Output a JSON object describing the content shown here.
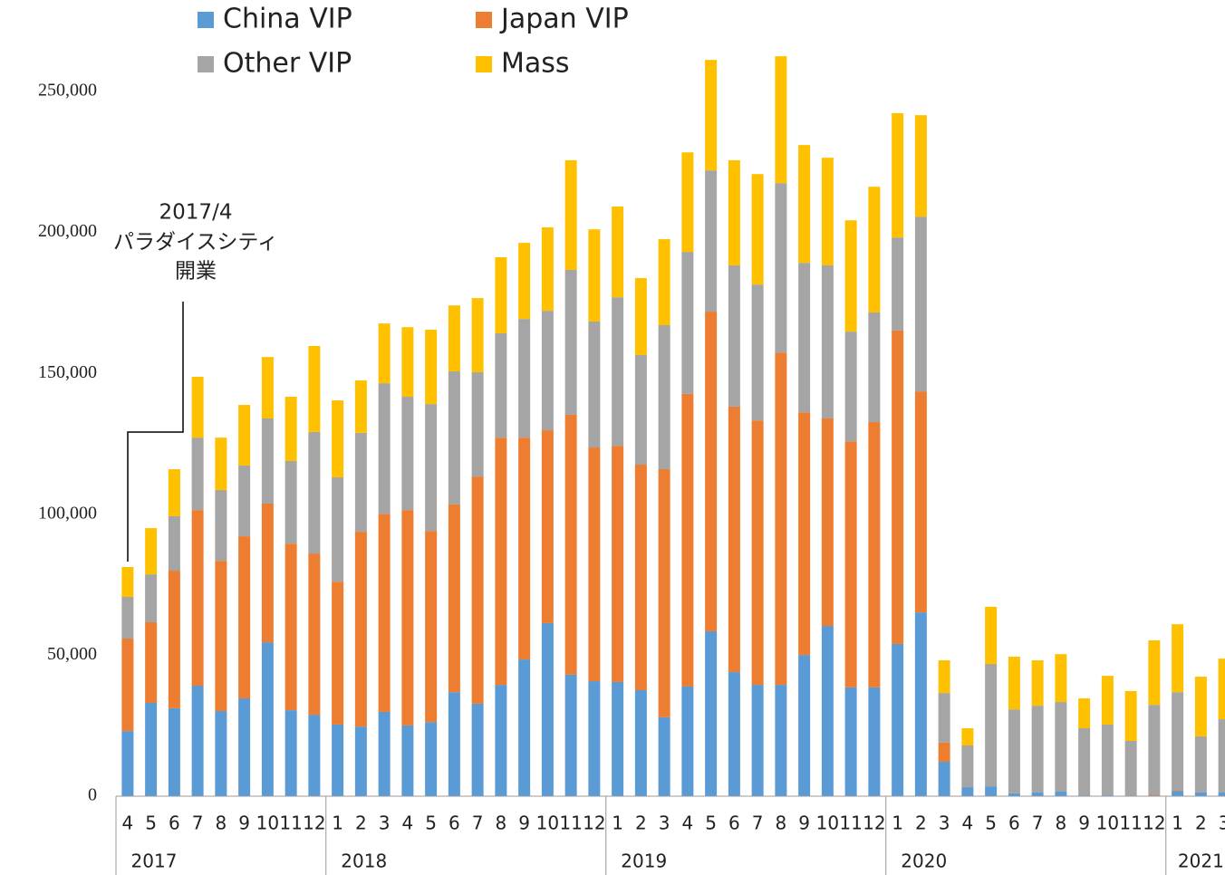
{
  "chart_data": {
    "type": "stacked_bar",
    "annotation": [
      "2017/4",
      "パラダイスシティ",
      "開業"
    ],
    "categories": [
      "4",
      "5",
      "6",
      "7",
      "8",
      "9",
      "10",
      "11",
      "12",
      "1",
      "2",
      "3",
      "4",
      "5",
      "6",
      "7",
      "8",
      "9",
      "10",
      "11",
      "12",
      "1",
      "2",
      "3",
      "4",
      "5",
      "6",
      "7",
      "8",
      "9",
      "10",
      "11",
      "12",
      "1",
      "2",
      "3",
      "4",
      "5",
      "6",
      "7",
      "8",
      "9",
      "10",
      "11",
      "12",
      "1",
      "2",
      "3"
    ],
    "groups": [
      {
        "name": "2017",
        "size": 9
      },
      {
        "name": "2018",
        "size": 12
      },
      {
        "name": "2019",
        "size": 12
      },
      {
        "name": "2020",
        "size": 12
      },
      {
        "name": "2021",
        "size": 3
      }
    ],
    "series": [
      {
        "name": "China VIP",
        "color": "#5b9bd5",
        "values": [
          23100,
          33100,
          31200,
          39200,
          30200,
          34700,
          54600,
          30500,
          28900,
          25400,
          24700,
          29900,
          25100,
          26300,
          36900,
          32800,
          39500,
          48500,
          61400,
          43100,
          40800,
          40500,
          37600,
          28000,
          38900,
          58500,
          44000,
          39500,
          39500,
          50100,
          60400,
          38600,
          38600,
          54000,
          65200,
          12200,
          3200,
          3500,
          1000,
          1300,
          1600,
          300,
          300,
          0,
          300,
          1900,
          1300,
          1300
        ]
      },
      {
        "name": "Japan VIP",
        "color": "#ed7d31",
        "values": [
          32800,
          28600,
          48800,
          62300,
          53300,
          57500,
          49200,
          59100,
          57200,
          50700,
          69100,
          70300,
          76400,
          67800,
          66600,
          80600,
          87700,
          78700,
          68400,
          92200,
          82900,
          83800,
          80000,
          88000,
          103800,
          113400,
          94200,
          93800,
          117900,
          86100,
          73600,
          87300,
          94100,
          111200,
          78400,
          6800,
          0,
          0,
          0,
          0,
          0,
          0,
          0,
          0,
          300,
          300,
          0,
          0
        ]
      },
      {
        "name": "Other VIP",
        "color": "#a5a5a5",
        "values": [
          14800,
          17000,
          19300,
          25700,
          25100,
          25100,
          30200,
          29300,
          43100,
          37000,
          35100,
          46300,
          40200,
          45000,
          47200,
          37000,
          37000,
          42100,
          42400,
          51400,
          44700,
          52700,
          38900,
          51100,
          50400,
          50100,
          50100,
          48200,
          60100,
          53000,
          54300,
          38900,
          38900,
          33000,
          62000,
          17600,
          14800,
          43400,
          29800,
          30800,
          31800,
          23800,
          25100,
          19600,
          31800,
          34700,
          19900,
          26000
        ]
      },
      {
        "name": "Mass",
        "color": "#ffc000",
        "values": [
          10600,
          16400,
          16700,
          21600,
          18600,
          21500,
          21800,
          22800,
          30500,
          27300,
          18600,
          21200,
          24700,
          26400,
          23400,
          26300,
          27000,
          27000,
          29600,
          38900,
          32700,
          32200,
          27300,
          30500,
          35300,
          39200,
          37300,
          39200,
          45000,
          41800,
          38200,
          39500,
          44600,
          44100,
          36000,
          11600,
          6100,
          20300,
          18700,
          16100,
          17000,
          10600,
          17300,
          17700,
          22900,
          24100,
          21200,
          21500
        ]
      }
    ],
    "ylim": [
      0,
      250000
    ],
    "yticks": [
      {
        "value": 0,
        "label": "0"
      },
      {
        "value": 50000,
        "label": "50,000"
      },
      {
        "value": 100000,
        "label": "100,000"
      },
      {
        "value": 150000,
        "label": "150,000"
      },
      {
        "value": 200000,
        "label": "200,000"
      },
      {
        "value": 250000,
        "label": "250,000"
      }
    ],
    "grid": false
  }
}
